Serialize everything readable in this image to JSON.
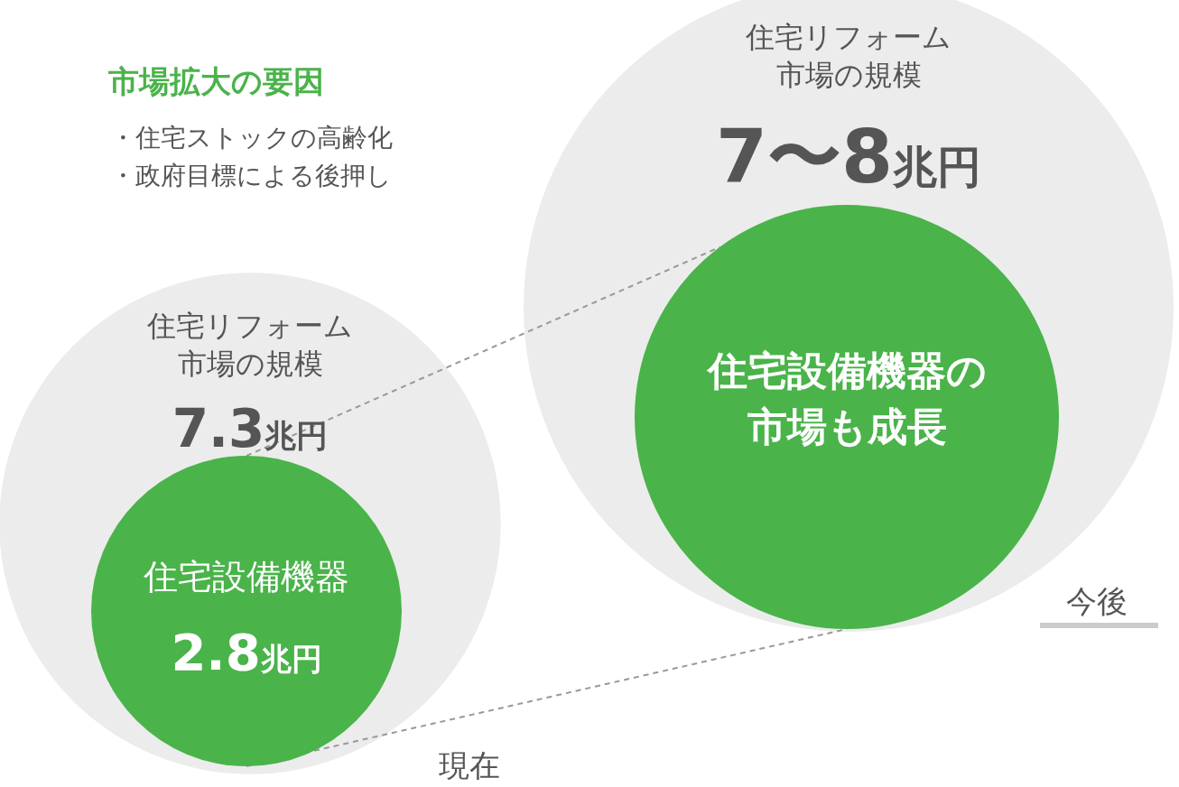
{
  "chart_data": {
    "type": "other",
    "title": "市場拡大の要因",
    "categories": [
      "現在",
      "今後"
    ],
    "series": [
      {
        "name": "住宅リフォーム市場の規模",
        "color": "#ececec",
        "values": [
          7.3,
          null
        ],
        "value_labels": [
          "7.3兆円",
          "7〜8兆円"
        ]
      },
      {
        "name": "住宅設備機器",
        "color": "#4ab34a",
        "values": [
          2.8,
          null
        ],
        "value_labels": [
          "2.8兆円",
          null
        ]
      }
    ],
    "annotations": [
      "・住宅ストックの高齢化",
      "・政府目標による後押し",
      "住宅設備機器の市場も成長"
    ]
  }
}
